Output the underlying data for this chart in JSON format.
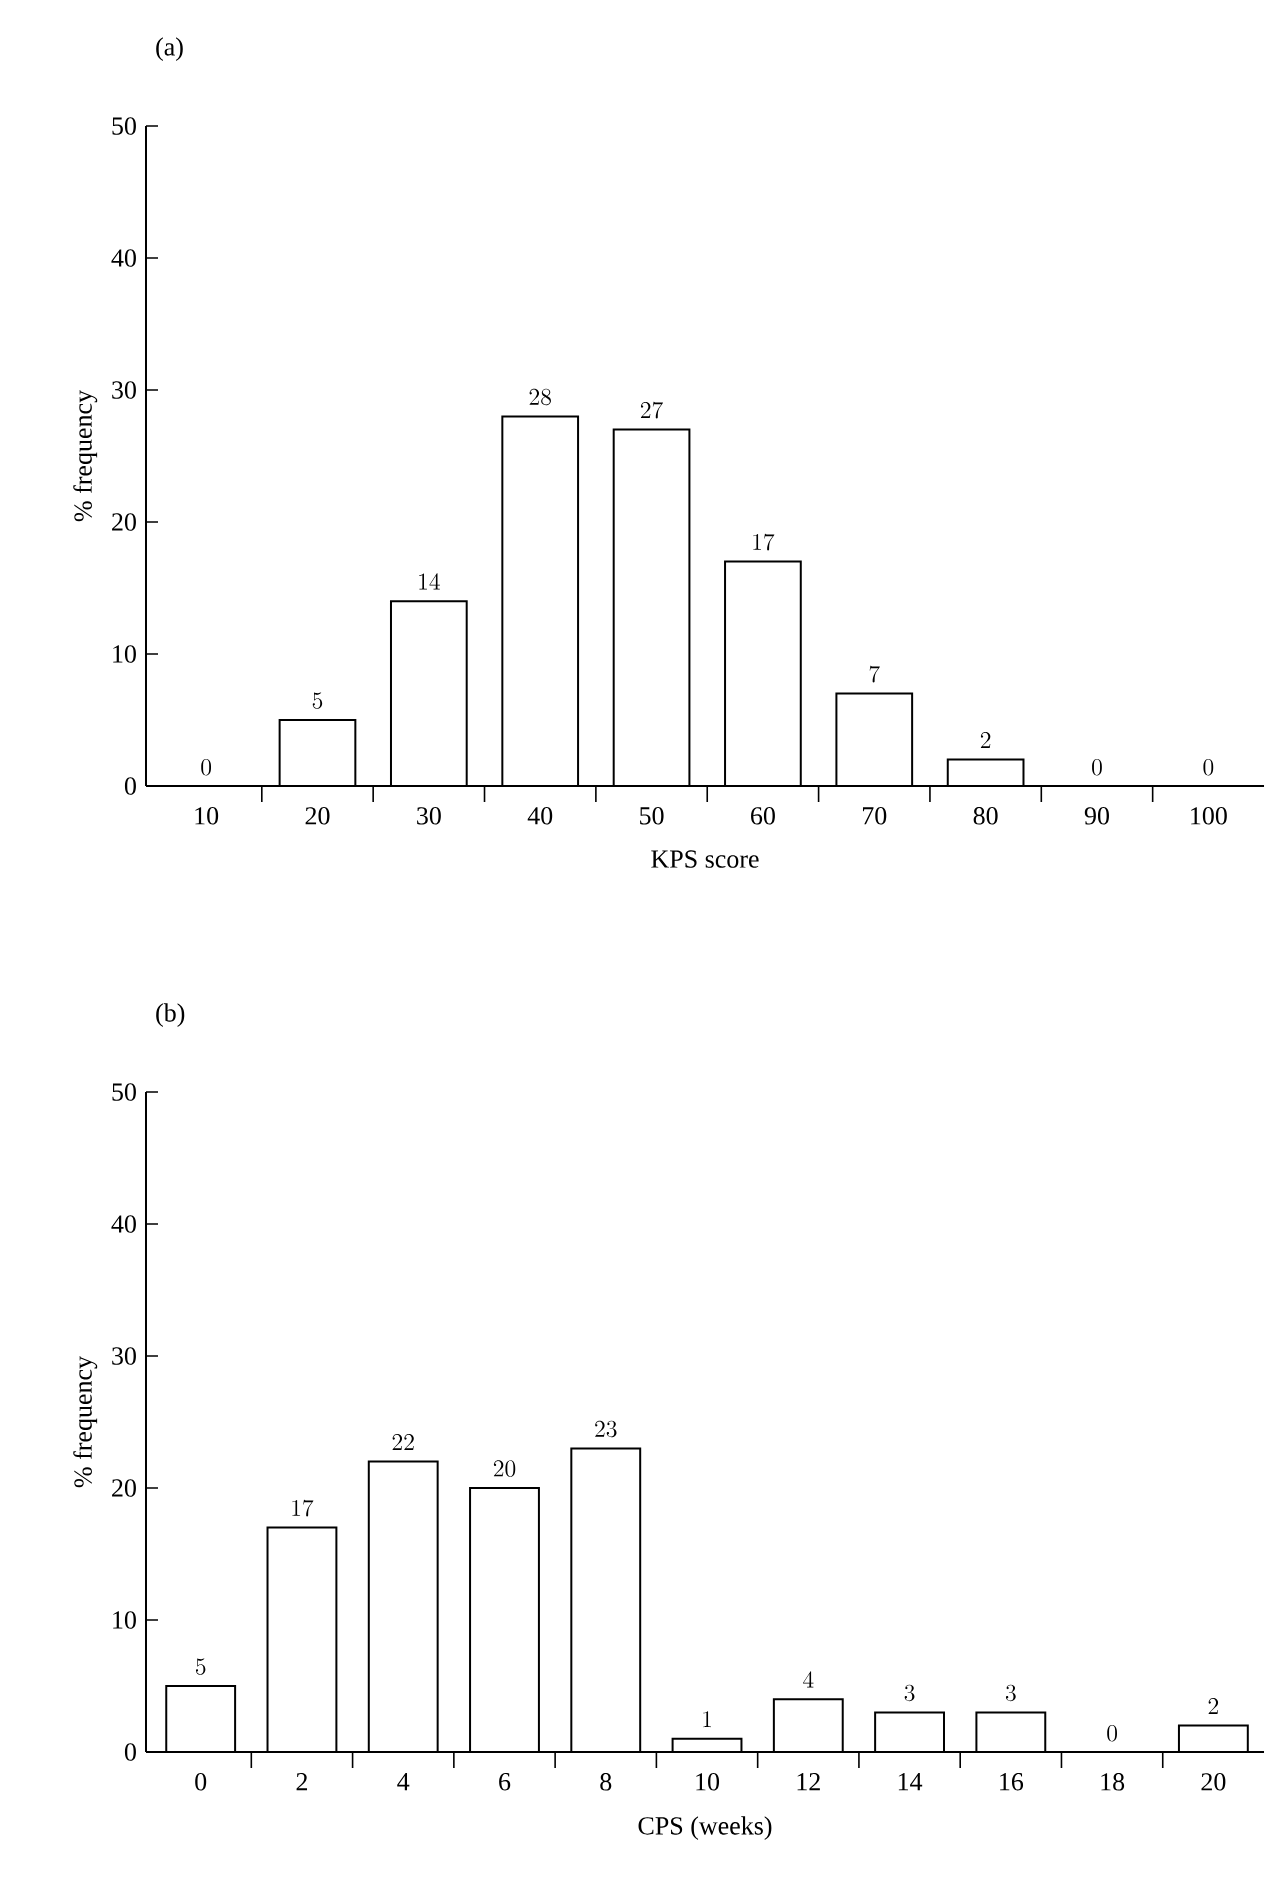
{
  "chart_data": [
    {
      "type": "bar",
      "title": "(a)",
      "xlabel": "KPS score",
      "ylabel": "% frequency",
      "categories": [
        "10",
        "20",
        "30",
        "40",
        "50",
        "60",
        "70",
        "80",
        "90",
        "100"
      ],
      "values": [
        0,
        5,
        14,
        28,
        27,
        17,
        7,
        2,
        0,
        0
      ],
      "color": "#ffffff",
      "ylim": [
        0,
        50
      ],
      "yticks": [
        0,
        10,
        20,
        30,
        40,
        50
      ],
      "data_labels": true
    },
    {
      "type": "bar",
      "title": "(b)",
      "xlabel": "CPS (weeks)",
      "ylabel": "% frequency",
      "categories": [
        "0",
        "2",
        "4",
        "6",
        "8",
        "10",
        "12",
        "14",
        "16",
        "18",
        "20"
      ],
      "values": [
        5,
        17,
        22,
        20,
        23,
        1,
        4,
        3,
        3,
        0,
        2
      ],
      "color": "#ffffff",
      "ylim": [
        0,
        50
      ],
      "yticks": [
        0,
        10,
        20,
        30,
        40,
        50
      ],
      "data_labels": true
    }
  ]
}
